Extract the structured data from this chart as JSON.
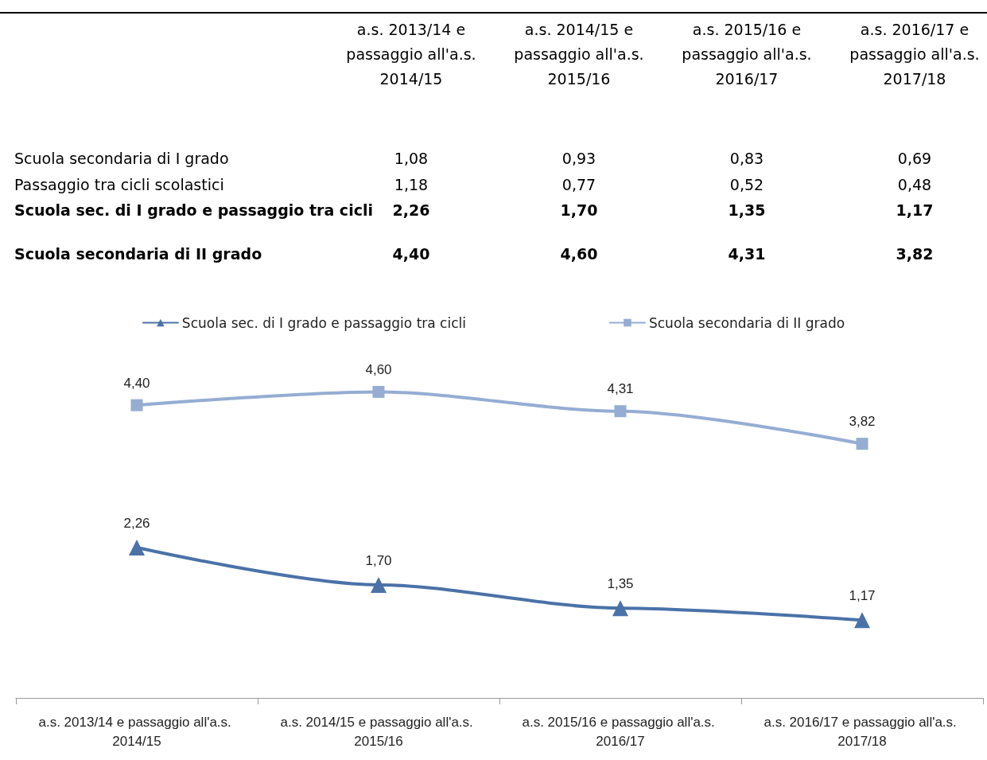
{
  "chart_data": [
    {
      "type": "other",
      "categories": [
        "a.s. 2013/14 e passaggio all'a.s. 2014/15",
        "a.s. 2014/15 e passaggio all'a.s. 2015/16",
        "a.s. 2015/16 e passaggio all'a.s. 2016/17",
        "a.s. 2016/17 e passaggio all'a.s. 2017/18"
      ],
      "series": [
        {
          "name": "Scuola secondaria di I grado",
          "values": [
            1.08,
            0.93,
            0.83,
            0.69
          ],
          "value_labels": [
            "1,08",
            "0,93",
            "0,83",
            "0,69"
          ]
        },
        {
          "name": "Passaggio tra cicli scolastici",
          "values": [
            1.18,
            0.77,
            0.52,
            0.48
          ],
          "value_labels": [
            "1,18",
            "0,77",
            "0,52",
            "0,48"
          ]
        },
        {
          "name": "Scuola sec. di I grado e passaggio tra cicli",
          "values": [
            2.26,
            1.7,
            1.35,
            1.17
          ],
          "value_labels": [
            "2,26",
            "1,70",
            "1,35",
            "1,17"
          ]
        },
        {
          "name": "Scuola secondaria di II grado",
          "values": [
            4.4,
            4.6,
            4.31,
            3.82
          ],
          "value_labels": [
            "4,40",
            "4,60",
            "4,31",
            "3,82"
          ]
        }
      ]
    },
    {
      "type": "line",
      "categories": [
        "a.s. 2013/14 e passaggio all'a.s. 2014/15",
        "a.s. 2014/15 e passaggio all'a.s. 2015/16",
        "a.s. 2015/16 e passaggio all'a.s. 2016/17",
        "a.s. 2016/17 e passaggio all'a.s. 2017/18"
      ],
      "series": [
        {
          "name": "Scuola sec. di I grado e passaggio tra cicli",
          "color": "#4a72a8",
          "marker": "triangle",
          "values": [
            2.26,
            1.7,
            1.35,
            1.17
          ],
          "value_labels": [
            "2,26",
            "1,70",
            "1,35",
            "1,17"
          ]
        },
        {
          "name": "Scuola secondaria di II grado",
          "color": "#95add3",
          "marker": "square",
          "values": [
            4.4,
            4.6,
            4.31,
            3.82
          ],
          "value_labels": [
            "4,40",
            "4,60",
            "4,31",
            "3,82"
          ]
        }
      ],
      "legend": "top",
      "tick_labels": "x"
    }
  ]
}
